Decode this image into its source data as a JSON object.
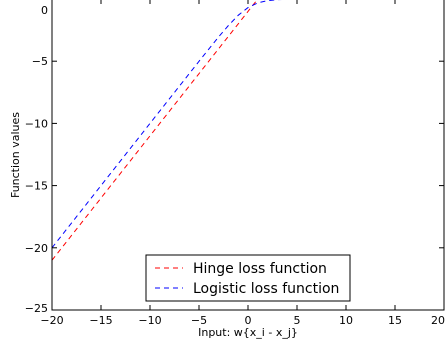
{
  "chart_data": {
    "type": "line",
    "xlabel": "Input: w{x_i - x_j}",
    "ylabel": "Function values",
    "xlim": [
      -20,
      20
    ],
    "ylim": [
      -25,
      0
    ],
    "x_ticks": [
      -20,
      -15,
      -10,
      -5,
      0,
      5,
      10,
      15,
      20
    ],
    "y_ticks": [
      0,
      -5,
      -10,
      -15,
      -20,
      -25
    ],
    "x_tick_labels": [
      "−20",
      "−15",
      "−10",
      "−5",
      "0",
      "5",
      "10",
      "15",
      "20"
    ],
    "y_tick_labels": [
      "0",
      "−5",
      "−10",
      "−15",
      "−20",
      "−25"
    ],
    "legend_position": "lower-center",
    "grid": false,
    "series": [
      {
        "name": "Hinge loss function",
        "color": "#ff0000",
        "style": "dashed",
        "x": [
          -20,
          -15,
          -10,
          -5,
          -2,
          0,
          1,
          2,
          5,
          10,
          15,
          20
        ],
        "y": [
          -21,
          -16,
          -11,
          -6,
          -3,
          -1,
          0,
          0,
          0,
          0,
          0,
          0
        ]
      },
      {
        "name": "Logistic loss function",
        "color": "#0000ff",
        "style": "dashed",
        "x": [
          -20,
          -15,
          -10,
          -5,
          -3,
          -2,
          -1,
          0,
          1,
          2,
          3,
          5,
          10,
          15,
          20
        ],
        "y": [
          -20,
          -15,
          -10,
          -5.01,
          -3.05,
          -2.13,
          -1.31,
          -0.69,
          -0.31,
          -0.13,
          -0.05,
          -0.01,
          0,
          0,
          0
        ]
      }
    ]
  }
}
